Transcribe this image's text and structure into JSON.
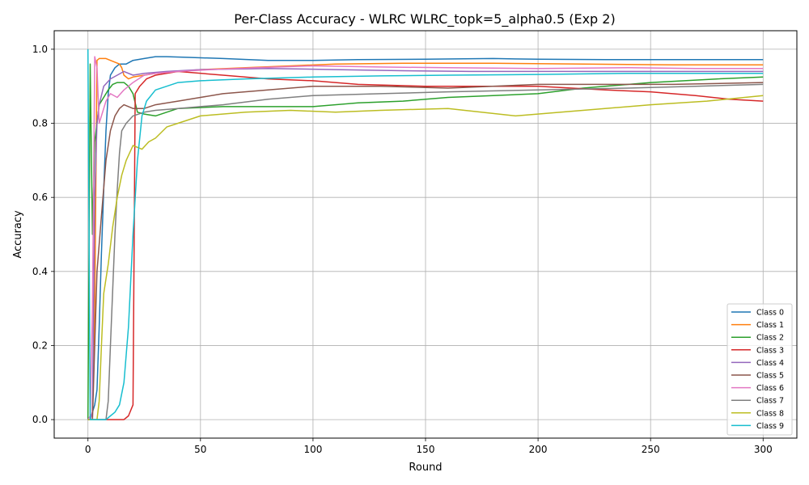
{
  "chart_data": {
    "type": "line",
    "title": "Per-Class Accuracy - WLRC WLRC_topk=5_alpha0.5 (Exp 2)",
    "xlabel": "Round",
    "ylabel": "Accuracy",
    "xlim": [
      -15,
      315
    ],
    "ylim": [
      -0.05,
      1.05
    ],
    "xticks": [
      0,
      50,
      100,
      150,
      200,
      250,
      300
    ],
    "yticks": [
      0.0,
      0.2,
      0.4,
      0.6,
      0.8,
      1.0
    ],
    "xtick_labels": [
      "0",
      "50",
      "100",
      "150",
      "200",
      "250",
      "300"
    ],
    "ytick_labels": [
      "0.0",
      "0.2",
      "0.4",
      "0.6",
      "0.8",
      "1.0"
    ],
    "grid": true,
    "legend_position": "bottom-right",
    "series": [
      {
        "name": "Class 0",
        "color": "#1f77b4",
        "points": [
          [
            0,
            0
          ],
          [
            1,
            0
          ],
          [
            2,
            0.02
          ],
          [
            3,
            0.04
          ],
          [
            4,
            0.08
          ],
          [
            5,
            0.25
          ],
          [
            6,
            0.45
          ],
          [
            7,
            0.62
          ],
          [
            8,
            0.78
          ],
          [
            9,
            0.88
          ],
          [
            10,
            0.93
          ],
          [
            12,
            0.95
          ],
          [
            14,
            0.96
          ],
          [
            17,
            0.96
          ],
          [
            20,
            0.97
          ],
          [
            25,
            0.975
          ],
          [
            30,
            0.98
          ],
          [
            35,
            0.98
          ],
          [
            45,
            0.978
          ],
          [
            60,
            0.975
          ],
          [
            80,
            0.97
          ],
          [
            100,
            0.97
          ],
          [
            120,
            0.972
          ],
          [
            150,
            0.973
          ],
          [
            180,
            0.975
          ],
          [
            200,
            0.973
          ],
          [
            230,
            0.972
          ],
          [
            260,
            0.972
          ],
          [
            300,
            0.972
          ]
        ]
      },
      {
        "name": "Class 1",
        "color": "#ff7f0e",
        "points": [
          [
            0,
            0
          ],
          [
            1,
            0
          ],
          [
            2,
            0.02
          ],
          [
            3,
            0.3
          ],
          [
            4,
            0.97
          ],
          [
            5,
            0.975
          ],
          [
            8,
            0.975
          ],
          [
            10,
            0.97
          ],
          [
            12,
            0.965
          ],
          [
            14,
            0.96
          ],
          [
            15,
            0.95
          ],
          [
            16,
            0.93
          ],
          [
            18,
            0.92
          ],
          [
            20,
            0.925
          ],
          [
            25,
            0.93
          ],
          [
            30,
            0.935
          ],
          [
            40,
            0.94
          ],
          [
            50,
            0.945
          ],
          [
            70,
            0.95
          ],
          [
            90,
            0.955
          ],
          [
            110,
            0.96
          ],
          [
            140,
            0.962
          ],
          [
            180,
            0.962
          ],
          [
            220,
            0.96
          ],
          [
            260,
            0.958
          ],
          [
            300,
            0.958
          ]
        ]
      },
      {
        "name": "Class 2",
        "color": "#2ca02c",
        "points": [
          [
            0,
            0
          ],
          [
            1,
            0.96
          ],
          [
            2,
            0.5
          ],
          [
            3,
            0.75
          ],
          [
            5,
            0.85
          ],
          [
            7,
            0.87
          ],
          [
            9,
            0.89
          ],
          [
            11,
            0.905
          ],
          [
            13,
            0.91
          ],
          [
            16,
            0.91
          ],
          [
            18,
            0.9
          ],
          [
            20,
            0.88
          ],
          [
            22,
            0.83
          ],
          [
            25,
            0.825
          ],
          [
            30,
            0.82
          ],
          [
            40,
            0.84
          ],
          [
            60,
            0.845
          ],
          [
            80,
            0.845
          ],
          [
            100,
            0.845
          ],
          [
            120,
            0.855
          ],
          [
            140,
            0.86
          ],
          [
            160,
            0.87
          ],
          [
            180,
            0.875
          ],
          [
            200,
            0.88
          ],
          [
            220,
            0.895
          ],
          [
            250,
            0.91
          ],
          [
            280,
            0.92
          ],
          [
            300,
            0.925
          ]
        ]
      },
      {
        "name": "Class 3",
        "color": "#d62728",
        "points": [
          [
            0,
            0
          ],
          [
            4,
            0
          ],
          [
            8,
            0
          ],
          [
            12,
            0
          ],
          [
            16,
            0
          ],
          [
            18,
            0.01
          ],
          [
            20,
            0.04
          ],
          [
            21,
            0.88
          ],
          [
            23,
            0.9
          ],
          [
            26,
            0.92
          ],
          [
            30,
            0.93
          ],
          [
            40,
            0.94
          ],
          [
            60,
            0.93
          ],
          [
            80,
            0.92
          ],
          [
            100,
            0.915
          ],
          [
            120,
            0.905
          ],
          [
            150,
            0.9
          ],
          [
            180,
            0.9
          ],
          [
            200,
            0.9
          ],
          [
            230,
            0.89
          ],
          [
            250,
            0.885
          ],
          [
            270,
            0.875
          ],
          [
            285,
            0.865
          ],
          [
            300,
            0.86
          ]
        ]
      },
      {
        "name": "Class 4",
        "color": "#9467bd",
        "points": [
          [
            0,
            0
          ],
          [
            1,
            0
          ],
          [
            2,
            0.02
          ],
          [
            3,
            0.6
          ],
          [
            4,
            0.8
          ],
          [
            5,
            0.85
          ],
          [
            7,
            0.9
          ],
          [
            10,
            0.92
          ],
          [
            13,
            0.93
          ],
          [
            16,
            0.94
          ],
          [
            20,
            0.93
          ],
          [
            25,
            0.935
          ],
          [
            35,
            0.94
          ],
          [
            50,
            0.945
          ],
          [
            80,
            0.948
          ],
          [
            110,
            0.945
          ],
          [
            140,
            0.942
          ],
          [
            170,
            0.94
          ],
          [
            200,
            0.94
          ],
          [
            230,
            0.94
          ],
          [
            260,
            0.94
          ],
          [
            300,
            0.94
          ]
        ]
      },
      {
        "name": "Class 5",
        "color": "#8c564b",
        "points": [
          [
            0,
            0
          ],
          [
            2,
            0
          ],
          [
            4,
            0.4
          ],
          [
            6,
            0.55
          ],
          [
            8,
            0.7
          ],
          [
            10,
            0.78
          ],
          [
            12,
            0.82
          ],
          [
            14,
            0.84
          ],
          [
            16,
            0.85
          ],
          [
            20,
            0.84
          ],
          [
            25,
            0.84
          ],
          [
            30,
            0.85
          ],
          [
            40,
            0.86
          ],
          [
            50,
            0.87
          ],
          [
            60,
            0.88
          ],
          [
            80,
            0.89
          ],
          [
            100,
            0.9
          ],
          [
            130,
            0.9
          ],
          [
            160,
            0.895
          ],
          [
            200,
            0.905
          ],
          [
            230,
            0.905
          ],
          [
            260,
            0.905
          ],
          [
            300,
            0.91
          ]
        ]
      },
      {
        "name": "Class 6",
        "color": "#e377c2",
        "points": [
          [
            0,
            0
          ],
          [
            1,
            0.01
          ],
          [
            2,
            0.3
          ],
          [
            3,
            0.98
          ],
          [
            4,
            0.95
          ],
          [
            5,
            0.8
          ],
          [
            6,
            0.82
          ],
          [
            8,
            0.86
          ],
          [
            10,
            0.88
          ],
          [
            13,
            0.87
          ],
          [
            16,
            0.89
          ],
          [
            20,
            0.91
          ],
          [
            25,
            0.93
          ],
          [
            30,
            0.935
          ],
          [
            40,
            0.94
          ],
          [
            55,
            0.945
          ],
          [
            75,
            0.95
          ],
          [
            100,
            0.955
          ],
          [
            130,
            0.952
          ],
          [
            160,
            0.95
          ],
          [
            200,
            0.948
          ],
          [
            240,
            0.95
          ],
          [
            270,
            0.948
          ],
          [
            300,
            0.948
          ]
        ]
      },
      {
        "name": "Class 7",
        "color": "#7f7f7f",
        "points": [
          [
            0,
            0
          ],
          [
            5,
            0
          ],
          [
            8,
            0
          ],
          [
            9,
            0.05
          ],
          [
            10,
            0.2
          ],
          [
            11,
            0.35
          ],
          [
            12,
            0.5
          ],
          [
            13,
            0.62
          ],
          [
            14,
            0.72
          ],
          [
            15,
            0.78
          ],
          [
            17,
            0.8
          ],
          [
            20,
            0.82
          ],
          [
            25,
            0.83
          ],
          [
            30,
            0.835
          ],
          [
            40,
            0.84
          ],
          [
            60,
            0.85
          ],
          [
            80,
            0.865
          ],
          [
            100,
            0.875
          ],
          [
            130,
            0.88
          ],
          [
            160,
            0.885
          ],
          [
            200,
            0.89
          ],
          [
            240,
            0.895
          ],
          [
            270,
            0.9
          ],
          [
            300,
            0.905
          ]
        ]
      },
      {
        "name": "Class 8",
        "color": "#bcbd22",
        "points": [
          [
            0,
            0
          ],
          [
            2,
            0
          ],
          [
            4,
            0
          ],
          [
            5,
            0.05
          ],
          [
            6,
            0.2
          ],
          [
            7,
            0.34
          ],
          [
            9,
            0.42
          ],
          [
            11,
            0.52
          ],
          [
            13,
            0.6
          ],
          [
            15,
            0.66
          ],
          [
            17,
            0.7
          ],
          [
            20,
            0.74
          ],
          [
            24,
            0.73
          ],
          [
            27,
            0.75
          ],
          [
            30,
            0.76
          ],
          [
            35,
            0.79
          ],
          [
            40,
            0.8
          ],
          [
            50,
            0.82
          ],
          [
            70,
            0.83
          ],
          [
            90,
            0.835
          ],
          [
            110,
            0.83
          ],
          [
            130,
            0.835
          ],
          [
            160,
            0.84
          ],
          [
            190,
            0.82
          ],
          [
            220,
            0.835
          ],
          [
            250,
            0.85
          ],
          [
            275,
            0.86
          ],
          [
            300,
            0.875
          ]
        ]
      },
      {
        "name": "Class 9",
        "color": "#17becf",
        "points": [
          [
            0,
            1.0
          ],
          [
            0.5,
            0.5
          ],
          [
            1,
            0
          ],
          [
            5,
            0
          ],
          [
            8,
            0
          ],
          [
            10,
            0.01
          ],
          [
            12,
            0.02
          ],
          [
            14,
            0.04
          ],
          [
            16,
            0.1
          ],
          [
            18,
            0.25
          ],
          [
            20,
            0.5
          ],
          [
            22,
            0.7
          ],
          [
            24,
            0.82
          ],
          [
            26,
            0.86
          ],
          [
            30,
            0.89
          ],
          [
            35,
            0.9
          ],
          [
            40,
            0.91
          ],
          [
            50,
            0.915
          ],
          [
            70,
            0.92
          ],
          [
            100,
            0.925
          ],
          [
            130,
            0.928
          ],
          [
            160,
            0.93
          ],
          [
            200,
            0.932
          ],
          [
            240,
            0.935
          ],
          [
            270,
            0.935
          ],
          [
            300,
            0.935
          ]
        ]
      }
    ]
  }
}
